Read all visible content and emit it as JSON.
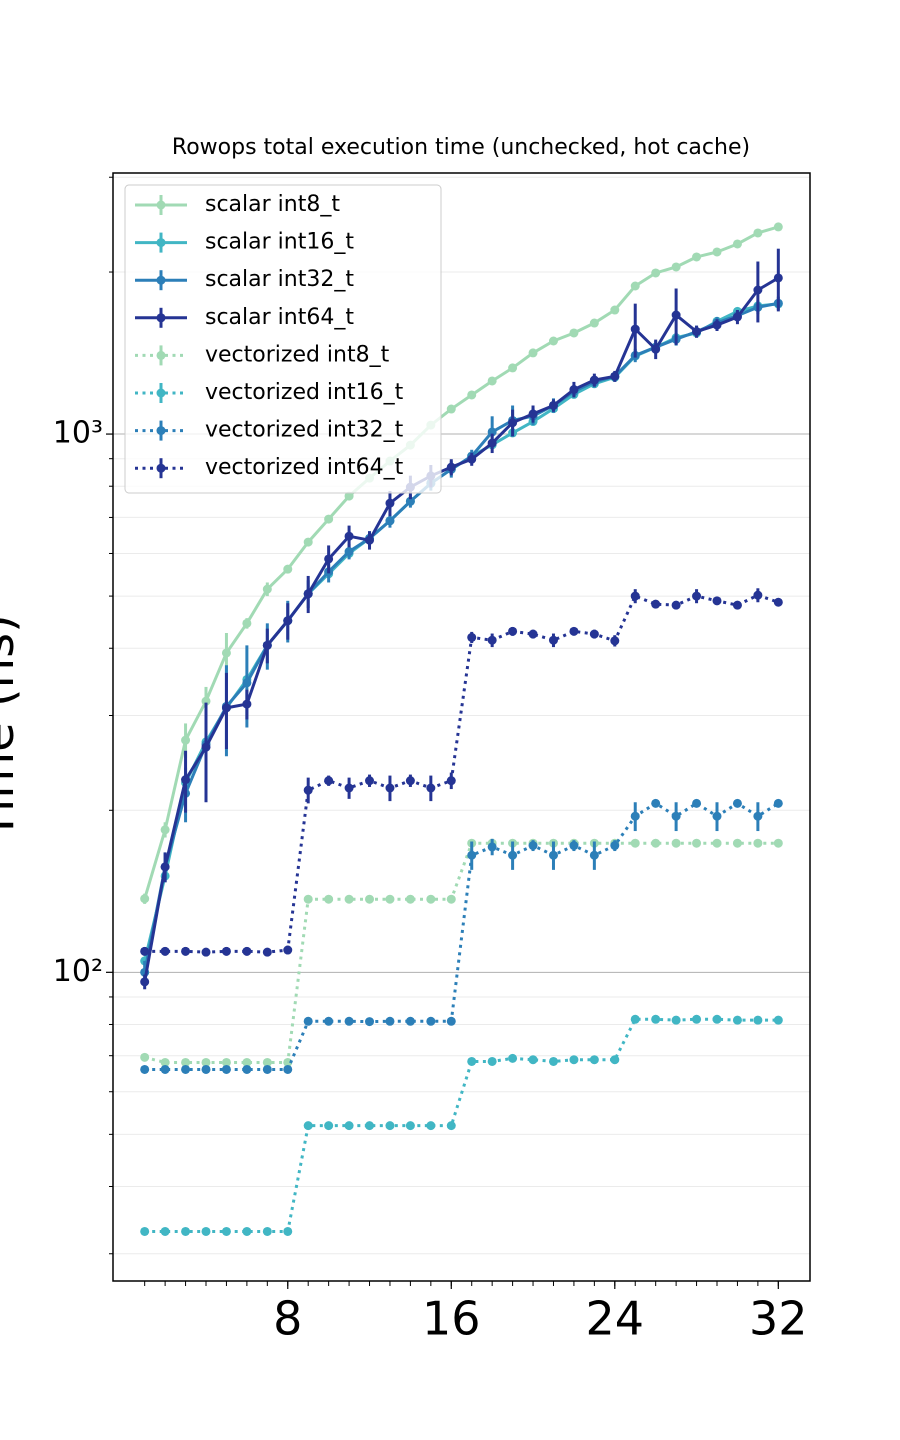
{
  "chart_data": {
    "type": "line",
    "title": "Rowops total execution time (unchecked, hot cache)",
    "y_label": "Time (ns)",
    "log_y": true,
    "grid": true,
    "legend": "upper left",
    "x": [
      1,
      2,
      3,
      4,
      5,
      6,
      7,
      8,
      9,
      10,
      11,
      12,
      13,
      14,
      15,
      16,
      17,
      18,
      19,
      20,
      21,
      22,
      23,
      24,
      25,
      26,
      27,
      28,
      29,
      30,
      31,
      32
    ],
    "xlim": [
      -0.55,
      33.55
    ],
    "xticks": [
      8,
      16,
      24,
      32
    ],
    "ylim": [
      26.7,
      3055
    ],
    "yticks": [
      {
        "value": 100,
        "label": "10²"
      },
      {
        "value": 1000,
        "label": "10³"
      }
    ],
    "yticks_minor": [
      30,
      40,
      50,
      60,
      70,
      80,
      90,
      200,
      300,
      400,
      500,
      600,
      700,
      800,
      900,
      2000,
      3000
    ],
    "series": [
      {
        "name": "scalar int8_t",
        "color": "#a1dab4",
        "style": "solid",
        "values": [
          137,
          184,
          270,
          319,
          392,
          445,
          515,
          561,
          630,
          695,
          767,
          828,
          891,
          954,
          1039,
          1113,
          1182,
          1255,
          1327,
          1415,
          1489,
          1541,
          1608,
          1700,
          1884,
          1992,
          2044,
          2133,
          2179,
          2255,
          2364,
          2426
        ],
        "errors": [
          3,
          6,
          20,
          20,
          35,
          10,
          15,
          10,
          5,
          5,
          5,
          5,
          5,
          5,
          5,
          5,
          5,
          5,
          5,
          5,
          5,
          5,
          5,
          5,
          10,
          10,
          10,
          10,
          10,
          10,
          10,
          10
        ]
      },
      {
        "name": "scalar int16_t",
        "color": "#41b6c4",
        "style": "solid",
        "values": [
          105,
          151,
          225,
          268,
          310,
          350,
          405,
          450,
          505,
          550,
          600,
          640,
          690,
          750,
          810,
          860,
          910,
          955,
          1005,
          1055,
          1115,
          1185,
          1240,
          1275,
          1396,
          1450,
          1510,
          1541,
          1620,
          1690,
          1730,
          1745
        ]
      },
      {
        "name": "scalar int32_t",
        "color": "#2c7fb8",
        "style": "solid",
        "values": [
          100,
          157,
          215,
          265,
          312,
          345,
          405,
          450,
          505,
          555,
          605,
          640,
          690,
          750,
          810,
          860,
          910,
          1009,
          1060,
          1080,
          1130,
          1200,
          1250,
          1280,
          1400,
          1450,
          1500,
          1550,
          1610,
          1660,
          1720,
          1750
        ],
        "errors": [
          5,
          10,
          25,
          25,
          60,
          60,
          40,
          40,
          30,
          25,
          20,
          20,
          20,
          20,
          25,
          30,
          25,
          70,
          70,
          40,
          35,
          30,
          30,
          25,
          40,
          40,
          40,
          40,
          40,
          40,
          50,
          50
        ]
      },
      {
        "name": "scalar int64_t",
        "color": "#253494",
        "style": "solid",
        "values": [
          96,
          157,
          228,
          262,
          310,
          315,
          405,
          450,
          505,
          586,
          646,
          635,
          744,
          797,
          836,
          868,
          898,
          962,
          1050,
          1090,
          1130,
          1210,
          1260,
          1280,
          1567,
          1438,
          1664,
          1550,
          1594,
          1650,
          1852,
          1950
        ],
        "errors": [
          3,
          10,
          30,
          55,
          50,
          20,
          30,
          35,
          40,
          35,
          30,
          25,
          40,
          40,
          40,
          30,
          25,
          40,
          60,
          40,
          30,
          40,
          35,
          30,
          180,
          60,
          200,
          40,
          40,
          50,
          240,
          260
        ]
      },
      {
        "name": "vectorized int8_t",
        "color": "#a1dab4",
        "style": "dotted",
        "values": [
          69.5,
          68,
          68,
          68,
          68,
          68,
          68,
          68,
          136.7,
          136.7,
          136.7,
          136.7,
          136.7,
          136.7,
          136.7,
          136.7,
          173.7,
          173.7,
          173.7,
          173.7,
          173.7,
          173.7,
          173.7,
          173.7,
          173.7,
          173.7,
          173.7,
          173.7,
          173.7,
          173.7,
          173.7,
          173.7
        ]
      },
      {
        "name": "vectorized int16_t",
        "color": "#41b6c4",
        "style": "dotted",
        "values": [
          33,
          33,
          33,
          33,
          33,
          33,
          33,
          33,
          51.9,
          51.9,
          51.9,
          51.9,
          51.9,
          51.9,
          51.9,
          51.9,
          68.3,
          68.3,
          69.2,
          68.8,
          68.3,
          68.8,
          68.8,
          68.8,
          81.8,
          81.8,
          81.5,
          81.8,
          81.8,
          81.5,
          81.5,
          81.5
        ]
      },
      {
        "name": "vectorized int32_t",
        "color": "#2c7fb8",
        "style": "dotted",
        "values": [
          66,
          66,
          66,
          66,
          66,
          66,
          66,
          66,
          81.1,
          81.1,
          81.1,
          81,
          81.1,
          81.1,
          81.1,
          81.1,
          165,
          171,
          165,
          172,
          165,
          172,
          165,
          172,
          195,
          206,
          195,
          206,
          195,
          206,
          195,
          206
        ],
        "errors": [
          1,
          1,
          1,
          1,
          1,
          1,
          1,
          1,
          1,
          1,
          1,
          1,
          1,
          1,
          1,
          1,
          10,
          6,
          10,
          4,
          10,
          4,
          10,
          4,
          12,
          3,
          12,
          3,
          12,
          3,
          12,
          3
        ]
      },
      {
        "name": "vectorized int64_t",
        "color": "#253494",
        "style": "dotted",
        "values": [
          109.4,
          109.4,
          109.4,
          109,
          109.4,
          109.4,
          109,
          110,
          218,
          227,
          220,
          227,
          220,
          227,
          220,
          227,
          419,
          414,
          430,
          425,
          414,
          430,
          425,
          413,
          500,
          483,
          481,
          500,
          490,
          481,
          502,
          487
        ],
        "errors": [
          2,
          2,
          2,
          2,
          2,
          2,
          2,
          2,
          12,
          5,
          10,
          6,
          12,
          6,
          12,
          8,
          10,
          12,
          8,
          8,
          12,
          6,
          8,
          10,
          15,
          8,
          8,
          15,
          8,
          8,
          15,
          8
        ]
      }
    ]
  }
}
